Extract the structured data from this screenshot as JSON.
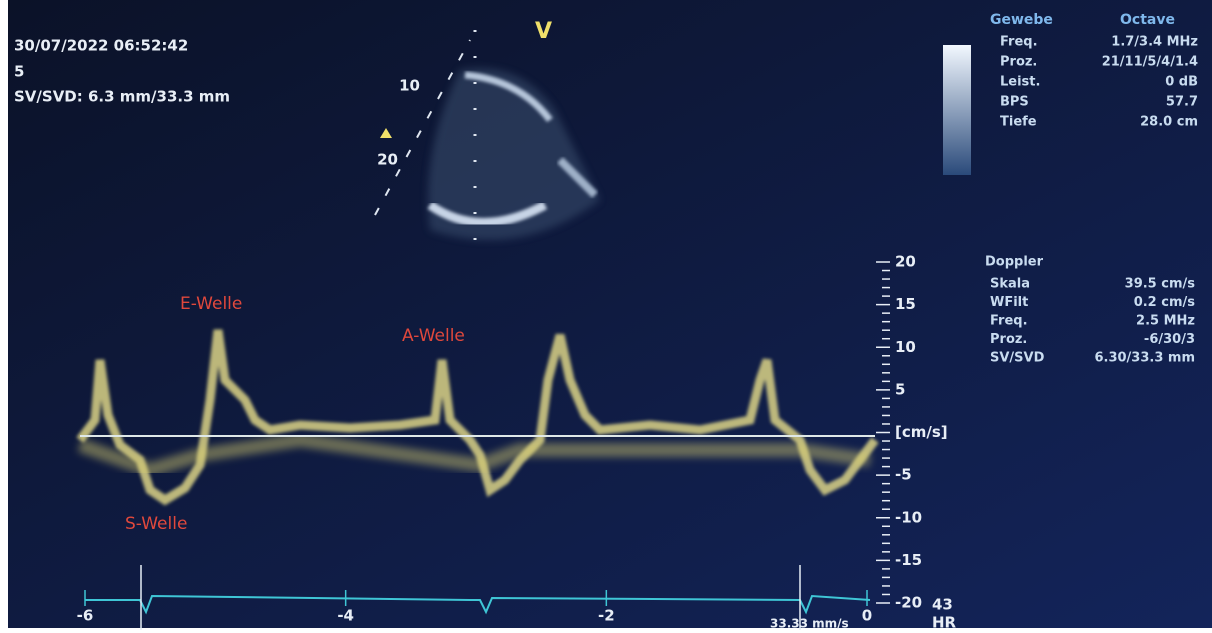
{
  "header": {
    "datetime": "30/07/2022 06:52:42",
    "line2": "5",
    "sv_svd": "SV/SVD: 6.3 mm/33.3 mm"
  },
  "image_markers": {
    "depth": [
      "10",
      "20"
    ],
    "orientation": "V"
  },
  "tissue_settings": {
    "title": "Gewebe",
    "mode": "Octave",
    "rows": [
      [
        "Freq.",
        "1.7/3.4 MHz"
      ],
      [
        "Proz.",
        "21/11/5/4/1.4"
      ],
      [
        "Leist.",
        "0 dB"
      ],
      [
        "BPS",
        "57.7"
      ],
      [
        "Tiefe",
        "28.0 cm"
      ]
    ]
  },
  "doppler_settings": {
    "title": "Doppler",
    "rows": [
      [
        "Skala",
        "39.5 cm/s"
      ],
      [
        "WFilt",
        "0.2 cm/s"
      ],
      [
        "Freq.",
        "2.5 MHz"
      ],
      [
        "Proz.",
        "-6/30/3"
      ],
      [
        "SV/SVD",
        "6.30/33.3 mm"
      ]
    ]
  },
  "annotations": [
    "E-Welle",
    "A-Welle",
    "S-Welle"
  ],
  "velocity_scale": {
    "labels": [
      "20",
      "15",
      "10",
      "5",
      "[cm/s]",
      "-5",
      "-10",
      "-15",
      "-20"
    ]
  },
  "time_scale": {
    "labels": [
      "-6",
      "-4",
      "-2",
      "0"
    ],
    "sweep": "33.33 mm/s"
  },
  "heart_rate": {
    "value": "43",
    "label": "HR"
  }
}
